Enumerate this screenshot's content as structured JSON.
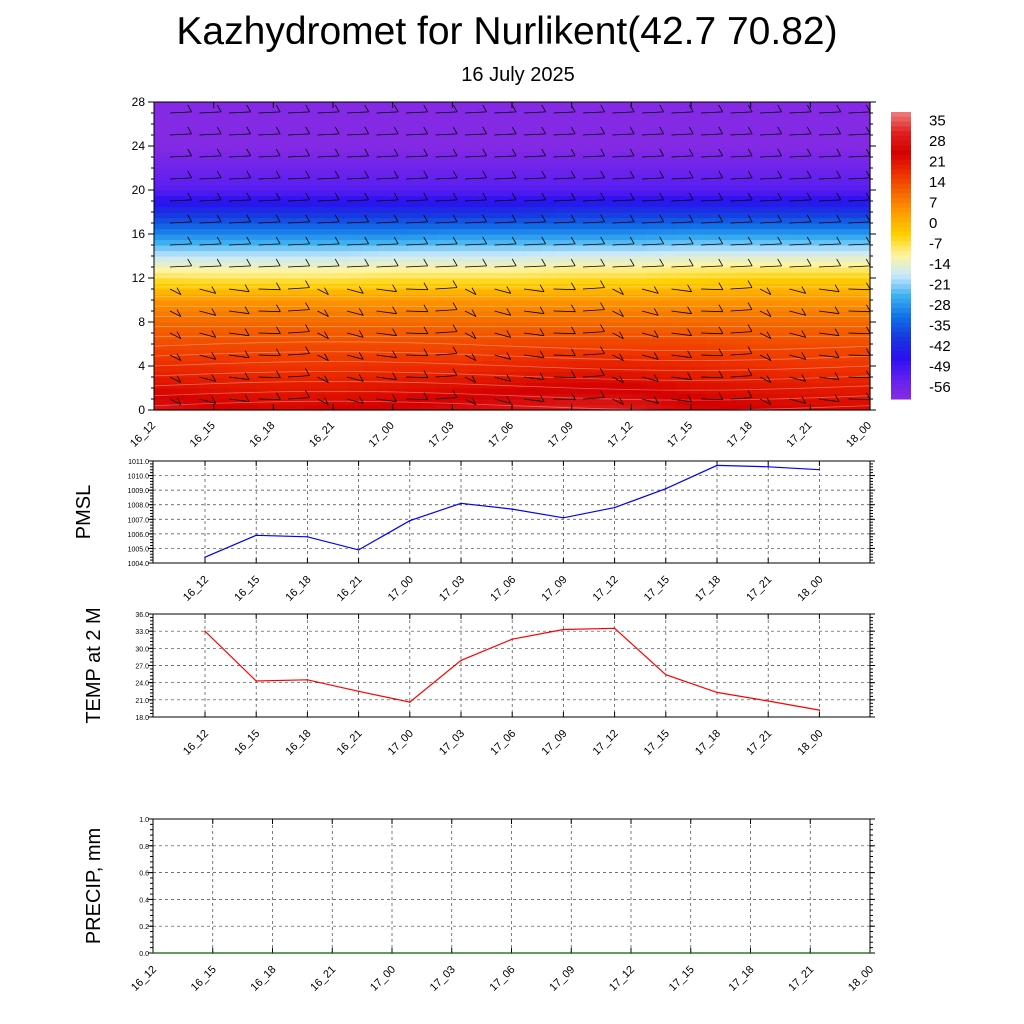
{
  "header": {
    "title": "Kazhydromet for Nurlikent(42.7 70.82)",
    "subtitle": "16 July 2025"
  },
  "chart_data": [
    {
      "type": "heatmap",
      "x": [
        "16_12",
        "16_15",
        "16_18",
        "16_21",
        "17_00",
        "17_03",
        "17_06",
        "17_09",
        "17_12",
        "17_15",
        "17_18",
        "17_21",
        "18_00"
      ],
      "y_ticks": [
        0,
        4,
        8,
        12,
        16,
        20,
        24,
        28
      ],
      "ylim": [
        0,
        28
      ],
      "y": [
        0,
        2,
        4,
        6,
        8,
        10,
        12,
        14,
        16,
        18,
        20,
        22,
        24,
        26,
        28
      ],
      "values": [
        [
          33,
          28,
          26,
          27,
          28,
          30,
          32,
          34,
          33,
          29,
          27,
          26,
          26
        ],
        [
          25,
          24,
          23,
          23,
          24,
          25,
          26,
          27,
          27,
          25,
          24,
          23,
          23
        ],
        [
          20,
          20,
          19,
          19,
          20,
          20,
          21,
          22,
          22,
          21,
          20,
          19,
          19
        ],
        [
          16,
          16,
          16,
          16,
          16,
          16,
          17,
          17,
          17,
          17,
          16,
          16,
          16
        ],
        [
          12,
          12,
          12,
          12,
          12,
          12,
          12,
          12,
          12,
          12,
          12,
          12,
          12
        ],
        [
          6,
          6,
          6,
          6,
          6,
          6,
          6,
          6,
          6,
          6,
          6,
          6,
          6
        ],
        [
          -6,
          -7,
          -7,
          -7,
          -6,
          -6,
          -6,
          -5,
          -5,
          -4,
          -3,
          -3,
          -3
        ],
        [
          -18,
          -18,
          -18,
          -18,
          -17,
          -17,
          -17,
          -16,
          -16,
          -15,
          -15,
          -15,
          -15
        ],
        [
          -30,
          -30,
          -30,
          -30,
          -30,
          -29,
          -29,
          -29,
          -29,
          -28,
          -28,
          -28,
          -28
        ],
        [
          -42,
          -42,
          -42,
          -42,
          -42,
          -42,
          -42,
          -41,
          -41,
          -41,
          -41,
          -41,
          -41
        ],
        [
          -54,
          -54,
          -54,
          -54,
          -54,
          -54,
          -54,
          -54,
          -54,
          -54,
          -54,
          -54,
          -54
        ],
        [
          -58,
          -58,
          -58,
          -58,
          -58,
          -58,
          -58,
          -58,
          -58,
          -58,
          -58,
          -58,
          -58
        ],
        [
          -62,
          -62,
          -62,
          -62,
          -62,
          -62,
          -62,
          -62,
          -62,
          -62,
          -62,
          -62,
          -62
        ],
        [
          -62,
          -62,
          -62,
          -62,
          -62,
          -62,
          -62,
          -62,
          -62,
          -62,
          -62,
          -62,
          -62
        ],
        [
          -62,
          -62,
          -62,
          -62,
          -62,
          -62,
          -62,
          -62,
          -62,
          -62,
          -62,
          -62,
          -62
        ]
      ],
      "colorbar": {
        "labels": [
          "35",
          "28",
          "21",
          "14",
          "7",
          "0",
          "-7",
          "-14",
          "-21",
          "-28",
          "-35",
          "-42",
          "-49",
          "-56"
        ],
        "colors": [
          "#f08080",
          "#e02020",
          "#d40000",
          "#ee3000",
          "#f56a00",
          "#ffa000",
          "#ffd000",
          "#fff4a0",
          "#c6e8ff",
          "#3bb0f0",
          "#1070e8",
          "#1838e0",
          "#2a10f0",
          "#6020f0",
          "#8a2be2"
        ]
      },
      "wind_barbs": true,
      "grid": false
    },
    {
      "type": "line",
      "ylabel": "PMSL",
      "x": [
        "16_12",
        "16_15",
        "16_18",
        "16_21",
        "17_00",
        "17_03",
        "17_06",
        "17_09",
        "17_12",
        "17_15",
        "17_18",
        "17_21",
        "18_00"
      ],
      "series": [
        {
          "values": [
            1004.4,
            1005.9,
            1005.8,
            1004.9,
            1006.9,
            1008.1,
            1007.7,
            1007.1,
            1007.8,
            1009.1,
            1010.7,
            1010.6,
            1010.4
          ],
          "color": "#0000ff"
        }
      ],
      "ylim": [
        1004.0,
        1011.0
      ],
      "yticks": [
        "1004.0",
        "1005.0",
        "1006.0",
        "1007.0",
        "1008.0",
        "1009.0",
        "1010.0",
        "1011.0"
      ],
      "grid": true
    },
    {
      "type": "line",
      "ylabel": "TEMP at 2 M",
      "x": [
        "16_12",
        "16_15",
        "16_18",
        "16_21",
        "17_00",
        "17_03",
        "17_06",
        "17_09",
        "17_12",
        "17_15",
        "17_18",
        "17_21",
        "18_00"
      ],
      "series": [
        {
          "values": [
            33.0,
            24.3,
            24.5,
            22.5,
            20.6,
            27.9,
            31.6,
            33.3,
            33.5,
            25.4,
            22.3,
            20.8,
            19.2
          ],
          "color": "#ff0000"
        }
      ],
      "ylim": [
        18.0,
        36.0
      ],
      "yticks": [
        "18.0",
        "21.0",
        "24.0",
        "27.0",
        "30.0",
        "33.0",
        "36.0"
      ],
      "grid": true
    },
    {
      "type": "line",
      "ylabel": "PRECIP, mm",
      "x": [
        "16_12",
        "16_15",
        "16_18",
        "16_21",
        "17_00",
        "17_03",
        "17_06",
        "17_09",
        "17_12",
        "17_15",
        "17_18",
        "17_21",
        "18_00"
      ],
      "series": [
        {
          "values": [
            0,
            0,
            0,
            0,
            0,
            0,
            0,
            0,
            0,
            0,
            0,
            0,
            0
          ],
          "color": "#006400"
        }
      ],
      "ylim": [
        0.0,
        1.0
      ],
      "yticks": [
        "0.0",
        "0.2",
        "0.4",
        "0.6",
        "0.8",
        "1.0"
      ],
      "grid": true
    }
  ]
}
